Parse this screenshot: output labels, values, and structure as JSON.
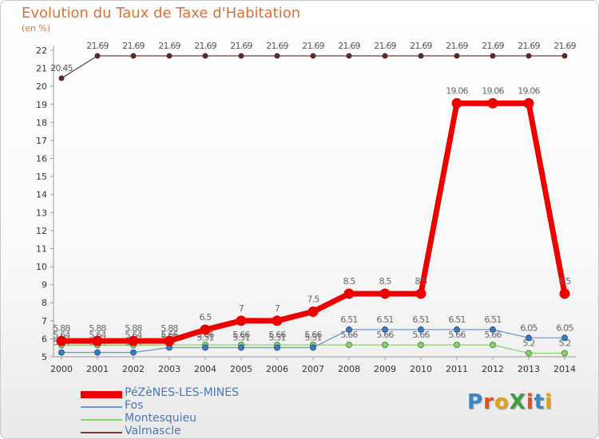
{
  "title": "Evolution du Taux de Taxe d'Habitation",
  "subtitle": "(en %)",
  "logo": {
    "text": "ProXiti",
    "letters": [
      {
        "ch": "P",
        "color": "#3a86c8"
      },
      {
        "ch": "r",
        "color": "#e05020"
      },
      {
        "ch": "o",
        "color": "#e0a020"
      },
      {
        "ch": "X",
        "color": "#40a040"
      },
      {
        "ch": "i",
        "color": "#e05020"
      },
      {
        "ch": "t",
        "color": "#3a86c8"
      },
      {
        "ch": "i",
        "color": "#e0a020"
      }
    ]
  },
  "chart_data": {
    "type": "line",
    "x": [
      "2000",
      "2001",
      "2002",
      "2003",
      "2004",
      "2005",
      "2006",
      "2007",
      "2008",
      "2009",
      "2010",
      "2011",
      "2012",
      "2013",
      "2014"
    ],
    "ylim": [
      5,
      22
    ],
    "yticks": [
      5,
      6,
      7,
      8,
      9,
      10,
      11,
      12,
      13,
      14,
      15,
      16,
      17,
      18,
      19,
      20,
      21,
      22
    ],
    "grid": false,
    "legend_position": "bottom-left",
    "series": [
      {
        "name": "Valmascle",
        "color": "#7a3a3a",
        "values": [
          20.45,
          21.69,
          21.69,
          21.69,
          21.69,
          21.69,
          21.69,
          21.69,
          21.69,
          21.69,
          21.69,
          21.69,
          21.69,
          21.69,
          21.69
        ],
        "labels": [
          "20.45",
          "21.69",
          "21.69",
          "21.69",
          "21.69",
          "21.69",
          "21.69",
          "21.69",
          "21.69",
          "21.69",
          "21.69",
          "21.69",
          "21.69",
          "21.69",
          "21.69"
        ]
      },
      {
        "name": "Montesquieu",
        "color": "#8ed070",
        "values": [
          5.64,
          5.64,
          5.64,
          5.66,
          5.66,
          5.66,
          5.66,
          5.66,
          5.66,
          5.66,
          5.66,
          5.66,
          5.66,
          5.2,
          5.2
        ],
        "labels": [
          "5.64",
          "5.64",
          "5.64",
          "5.66",
          "5.66",
          "5.66",
          "5.66",
          "5.66",
          "5.66",
          "5.66",
          "5.66",
          "5.66",
          "5.66",
          "5.2",
          "5.2"
        ]
      },
      {
        "name": "Fos",
        "color": "#6a9ad0",
        "values": [
          5.24,
          5.24,
          5.24,
          5.51,
          5.51,
          5.51,
          5.51,
          5.51,
          6.51,
          6.51,
          6.51,
          6.51,
          6.51,
          6.05,
          6.05
        ],
        "labels": [
          "5.24",
          "5.24",
          "5.24",
          "5.51",
          "5.51",
          "5.51",
          "5.51",
          "5.51",
          "6.51",
          "6.51",
          "6.51",
          "6.51",
          "6.51",
          "6.05",
          "6.05"
        ]
      },
      {
        "name": "PéZèNES-LES-MINES",
        "color": "#ee0000",
        "values": [
          5.88,
          5.88,
          5.88,
          5.88,
          6.5,
          7,
          7,
          7.5,
          8.5,
          8.5,
          8.5,
          19.06,
          19.06,
          19.06,
          8.5
        ],
        "labels": [
          "5.88",
          "5.88",
          "5.88",
          "5.88",
          "6.5",
          "7",
          "7",
          "7.5",
          "8.5",
          "8.5",
          "8.5",
          "19.06",
          "19.06",
          "19.06",
          "8.5"
        ]
      }
    ],
    "legend": [
      "PéZèNES-LES-MINES",
      "Fos",
      "Montesquieu",
      "Valmascle"
    ]
  }
}
